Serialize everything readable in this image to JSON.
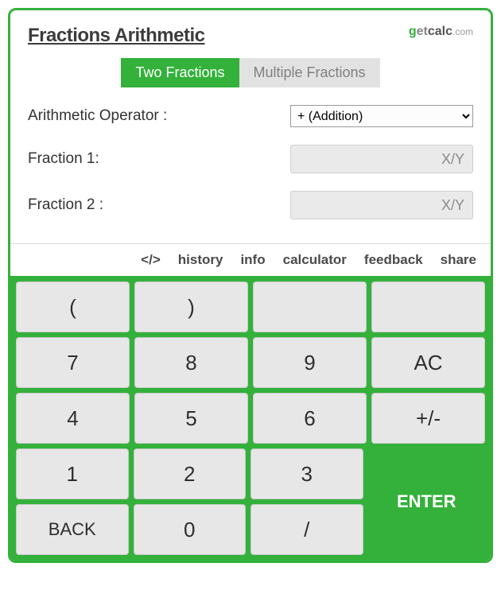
{
  "title": "Fractions Arithmetic",
  "logo": {
    "g": "g",
    "et": "et",
    "calc": "calc",
    "com": ".com"
  },
  "tabs": {
    "two": "Two Fractions",
    "multiple": "Multiple Fractions"
  },
  "form": {
    "operator_label": "Arithmetic Operator :",
    "operator_value": "+ (Addition)",
    "fraction1_label": "Fraction 1:",
    "fraction1_placeholder": "X/Y",
    "fraction2_label": "Fraction 2 :",
    "fraction2_placeholder": "X/Y"
  },
  "toolbar": {
    "embed": "</>",
    "history": "history",
    "info": "info",
    "calculator": "calculator",
    "feedback": "feedback",
    "share": "share"
  },
  "keys": {
    "lparen": "(",
    "rparen": ")",
    "k7": "7",
    "k8": "8",
    "k9": "9",
    "ac": "AC",
    "k4": "4",
    "k5": "5",
    "k6": "6",
    "pm": "+/-",
    "k1": "1",
    "k2": "2",
    "k3": "3",
    "back": "BACK",
    "k0": "0",
    "slash": "/",
    "enter": "ENTER"
  },
  "colors": {
    "accent": "#33b13a",
    "key_bg": "#e7e7e7",
    "inactive_tab": "#e2e2e2",
    "text": "#3c3c3c"
  }
}
